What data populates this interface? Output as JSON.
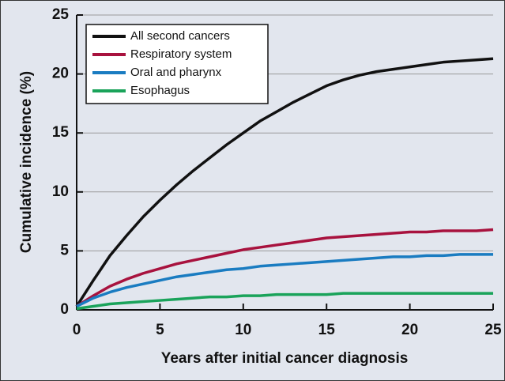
{
  "chart_data": {
    "type": "line",
    "x_label": "Years after initial cancer diagnosis",
    "y_label": "Cumulative incidence (%)",
    "x": [
      0,
      1,
      2,
      3,
      4,
      5,
      6,
      7,
      8,
      9,
      10,
      11,
      12,
      13,
      14,
      15,
      16,
      17,
      18,
      19,
      20,
      21,
      22,
      23,
      24,
      25
    ],
    "series": [
      {
        "name": "All second cancers",
        "color": "#111111",
        "values": [
          0.3,
          2.5,
          4.6,
          6.3,
          7.9,
          9.3,
          10.6,
          11.8,
          12.9,
          14.0,
          15.0,
          16.0,
          16.8,
          17.6,
          18.3,
          19.0,
          19.5,
          19.9,
          20.2,
          20.4,
          20.6,
          20.8,
          21.0,
          21.1,
          21.2,
          21.3
        ]
      },
      {
        "name": "Respiratory system",
        "color": "#a8123e",
        "values": [
          0.3,
          1.2,
          2.0,
          2.6,
          3.1,
          3.5,
          3.9,
          4.2,
          4.5,
          4.8,
          5.1,
          5.3,
          5.5,
          5.7,
          5.9,
          6.1,
          6.2,
          6.3,
          6.4,
          6.5,
          6.6,
          6.6,
          6.7,
          6.7,
          6.7,
          6.8
        ]
      },
      {
        "name": "Oral and pharynx",
        "color": "#1a7cc1",
        "values": [
          0.3,
          1.0,
          1.5,
          1.9,
          2.2,
          2.5,
          2.8,
          3.0,
          3.2,
          3.4,
          3.5,
          3.7,
          3.8,
          3.9,
          4.0,
          4.1,
          4.2,
          4.3,
          4.4,
          4.5,
          4.5,
          4.6,
          4.6,
          4.7,
          4.7,
          4.7
        ]
      },
      {
        "name": "Esophagus",
        "color": "#1aa35a",
        "values": [
          0.1,
          0.3,
          0.5,
          0.6,
          0.7,
          0.8,
          0.9,
          1.0,
          1.1,
          1.1,
          1.2,
          1.2,
          1.3,
          1.3,
          1.3,
          1.3,
          1.4,
          1.4,
          1.4,
          1.4,
          1.4,
          1.4,
          1.4,
          1.4,
          1.4,
          1.4
        ]
      }
    ],
    "xlim": [
      0,
      25
    ],
    "xticks": [
      0,
      5,
      10,
      15,
      20,
      25
    ],
    "ylim": [
      0,
      25
    ],
    "yticks": [
      0,
      5,
      10,
      15,
      20,
      25
    ],
    "grid": true,
    "legend": "upper left"
  }
}
